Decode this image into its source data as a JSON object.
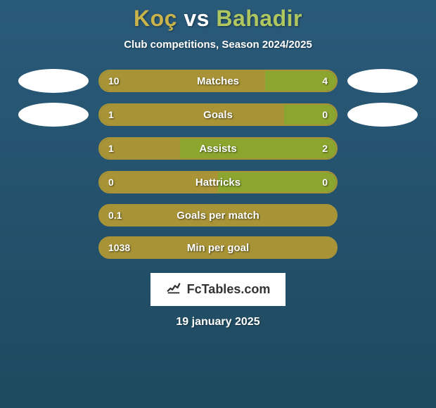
{
  "colors": {
    "player1": "#a89436",
    "player2": "#8aa62e",
    "title_p1": "#c9b34a",
    "title_p2": "#b0c760",
    "title_vs": "#ffffff",
    "text": "#ffffff"
  },
  "title": {
    "p1": "Koç",
    "vs": "vs",
    "p2": "Bahadir"
  },
  "subtitle": "Club competitions, Season 2024/2025",
  "stats": [
    {
      "label": "Matches",
      "v1": "10",
      "v2": "4",
      "w1": 70,
      "w2": 30,
      "ellipses": true
    },
    {
      "label": "Goals",
      "v1": "1",
      "v2": "0",
      "w1": 78,
      "w2": 22,
      "ellipses": true
    },
    {
      "label": "Assists",
      "v1": "1",
      "v2": "2",
      "w1": 34,
      "w2": 66,
      "ellipses": false
    },
    {
      "label": "Hattricks",
      "v1": "0",
      "v2": "0",
      "w1": 50,
      "w2": 50,
      "ellipses": false
    }
  ],
  "full_stats": [
    {
      "label": "Goals per match",
      "v1": "0.1"
    },
    {
      "label": "Min per goal",
      "v1": "1038"
    }
  ],
  "brand": "FcTables.com",
  "date": "19 january 2025"
}
